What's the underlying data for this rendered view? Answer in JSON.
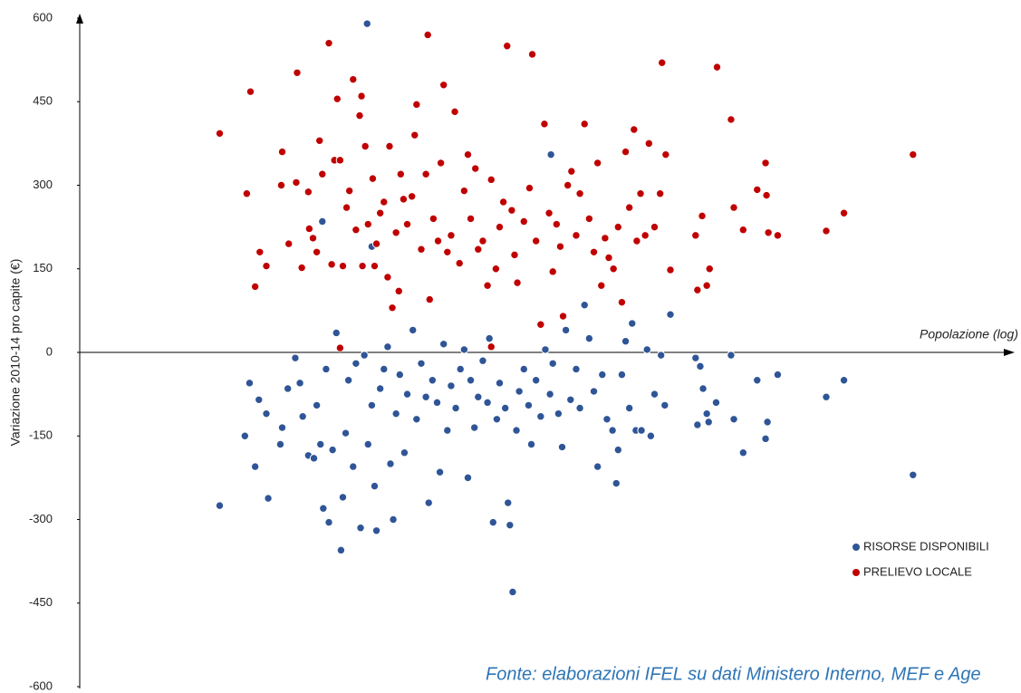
{
  "chart_data": {
    "type": "scatter",
    "ylabel": "Variazione 2010-14 pro capite (€)",
    "xlabel": "Popolazione  (log)",
    "source": "Fonte: elaborazioni IFEL su dati Ministero Interno, MEF e Age",
    "xlim": [
      0,
      100
    ],
    "ylim": [
      -600,
      600
    ],
    "yticks": [
      -600,
      -450,
      -300,
      -150,
      0,
      150,
      300,
      450,
      600
    ],
    "legend": "lower right",
    "series": [
      {
        "name": "RISORSE DISPONIBILI",
        "color": "#2f5597",
        "x": [
          15.0,
          17.7,
          18.2,
          18.8,
          19.2,
          20.0,
          20.2,
          21.5,
          21.7,
          22.3,
          23.1,
          23.6,
          23.9,
          24.5,
          25.1,
          25.4,
          25.8,
          26.1,
          26.4,
          26.7,
          27.1,
          27.5,
          28.0,
          28.2,
          28.5,
          28.8,
          29.3,
          29.6,
          30.1,
          30.5,
          30.8,
          30.9,
          31.3,
          31.6,
          31.8,
          32.2,
          32.6,
          33.0,
          33.3,
          33.6,
          33.9,
          34.3,
          34.8,
          35.1,
          35.7,
          36.1,
          36.6,
          37.1,
          37.4,
          37.8,
          38.3,
          38.6,
          39.0,
          39.4,
          39.8,
          40.3,
          40.8,
          41.2,
          41.6,
          41.9,
          42.3,
          42.7,
          43.2,
          43.7,
          43.9,
          44.3,
          44.7,
          45.0,
          45.6,
          45.9,
          46.1,
          46.4,
          46.8,
          47.1,
          47.6,
          48.1,
          48.4,
          48.9,
          49.4,
          49.9,
          50.4,
          50.7,
          51.3,
          51.7,
          52.1,
          52.6,
          53.2,
          53.6,
          54.1,
          54.6,
          55.1,
          55.5,
          56.0,
          56.5,
          57.1,
          57.5,
          57.7,
          58.1,
          58.5,
          58.9,
          59.2,
          59.6,
          60.2,
          60.8,
          61.2,
          61.6,
          62.3,
          62.7,
          63.3,
          66.0,
          66.2,
          66.5,
          66.8,
          67.2,
          67.4,
          68.2,
          69.8,
          70.1,
          71.1,
          72.6,
          73.5,
          73.7,
          74.8,
          80.0,
          81.9,
          89.3,
          50.5,
          26.0,
          31.3
        ],
        "values": [
          -275,
          -150,
          -55,
          -205,
          -85,
          -110,
          -262,
          -165,
          -135,
          -65,
          -10,
          -55,
          -115,
          -185,
          -190,
          -95,
          -165,
          -280,
          -30,
          -305,
          -175,
          35,
          -355,
          -260,
          -145,
          -50,
          -205,
          -20,
          -315,
          -5,
          590,
          -165,
          -95,
          -240,
          -320,
          -65,
          -30,
          10,
          -200,
          -300,
          -110,
          -40,
          -180,
          -75,
          40,
          -120,
          -20,
          -80,
          -270,
          -50,
          -90,
          -215,
          15,
          -140,
          -60,
          -100,
          -30,
          5,
          -225,
          -50,
          -135,
          -80,
          -15,
          -90,
          25,
          -305,
          -120,
          -55,
          -100,
          -270,
          -310,
          -430,
          -140,
          -70,
          -30,
          -95,
          -165,
          -50,
          -115,
          5,
          -75,
          -20,
          -110,
          -170,
          40,
          -85,
          -30,
          -100,
          85,
          25,
          -70,
          -205,
          -40,
          -120,
          -140,
          -235,
          -175,
          -40,
          20,
          -100,
          52,
          -140,
          -140,
          5,
          -150,
          -75,
          -5,
          -95,
          68,
          -10,
          -130,
          -25,
          -65,
          -110,
          -125,
          -90,
          -5,
          -120,
          -180,
          -50,
          -155,
          -125,
          -40,
          -80,
          -50,
          -220,
          355,
          235,
          190
        ]
      },
      {
        "name": "PRELIEVO LOCALE",
        "color": "#c00000",
        "x": [
          15.0,
          17.9,
          18.3,
          18.8,
          19.3,
          20.0,
          21.6,
          21.7,
          22.4,
          23.2,
          23.3,
          23.8,
          24.5,
          24.6,
          25.0,
          25.4,
          25.7,
          26.0,
          26.7,
          27.0,
          27.3,
          27.6,
          27.9,
          28.2,
          28.6,
          28.9,
          29.3,
          29.6,
          30.0,
          30.2,
          30.3,
          30.6,
          30.9,
          31.4,
          31.6,
          31.8,
          32.2,
          32.6,
          33.0,
          33.2,
          33.5,
          33.9,
          34.2,
          34.4,
          34.7,
          35.1,
          35.6,
          35.9,
          36.1,
          36.6,
          37.1,
          37.3,
          37.5,
          37.9,
          38.4,
          38.7,
          39.0,
          39.4,
          39.8,
          40.2,
          40.7,
          41.2,
          41.6,
          41.9,
          42.4,
          42.7,
          43.2,
          43.7,
          44.1,
          44.6,
          45.0,
          45.4,
          45.8,
          46.3,
          46.6,
          46.9,
          47.6,
          48.2,
          48.5,
          48.9,
          49.4,
          49.8,
          50.3,
          50.7,
          51.1,
          51.5,
          51.8,
          52.3,
          52.7,
          53.2,
          53.6,
          54.1,
          54.6,
          55.1,
          55.5,
          55.9,
          56.3,
          56.7,
          57.2,
          57.7,
          58.1,
          58.5,
          58.9,
          59.4,
          59.7,
          60.1,
          60.6,
          61.0,
          61.6,
          62.2,
          62.4,
          62.8,
          63.3,
          66.0,
          66.2,
          66.7,
          67.2,
          67.5,
          68.3,
          69.8,
          70.1,
          71.1,
          72.6,
          73.5,
          73.6,
          73.8,
          74.8,
          80.0,
          81.9,
          89.3,
          27.9,
          44.1
        ],
        "values": [
          393,
          285,
          468,
          118,
          180,
          155,
          300,
          360,
          195,
          305,
          502,
          152,
          288,
          222,
          205,
          180,
          380,
          320,
          555,
          158,
          345,
          455,
          345,
          155,
          260,
          290,
          490,
          220,
          425,
          460,
          155,
          370,
          230,
          312,
          155,
          195,
          250,
          270,
          135,
          370,
          80,
          215,
          110,
          320,
          275,
          230,
          280,
          390,
          445,
          185,
          320,
          570,
          95,
          240,
          200,
          340,
          480,
          180,
          210,
          432,
          160,
          290,
          355,
          240,
          330,
          185,
          200,
          120,
          310,
          150,
          225,
          270,
          550,
          255,
          175,
          125,
          235,
          295,
          535,
          200,
          50,
          410,
          250,
          145,
          230,
          190,
          65,
          300,
          325,
          210,
          285,
          410,
          240,
          180,
          340,
          120,
          205,
          170,
          150,
          225,
          90,
          360,
          260,
          400,
          200,
          285,
          210,
          375,
          225,
          285,
          520,
          355,
          148,
          210,
          112,
          245,
          120,
          150,
          512,
          418,
          260,
          220,
          292,
          340,
          282,
          215,
          210,
          218,
          250,
          355,
          8,
          10
        ]
      }
    ]
  }
}
